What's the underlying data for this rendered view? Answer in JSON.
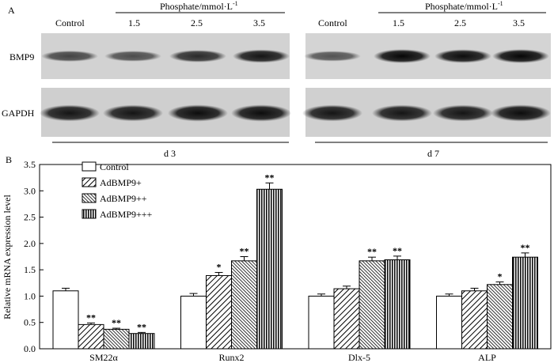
{
  "panel_a": {
    "label": "A",
    "column_labels": [
      "Control",
      "1.5",
      "2.5",
      "3.5"
    ],
    "phosphate_label_main": "Phosphate/mmol·L",
    "phosphate_label_sup": "-1",
    "rows": [
      "BMP9",
      "GAPDH"
    ],
    "groups": [
      {
        "time_label": "d 3",
        "bmp9_intensity": [
          0.5,
          0.45,
          0.7,
          0.85
        ],
        "gapdh_intensity": [
          0.85,
          0.85,
          0.9,
          0.9
        ]
      },
      {
        "time_label": "d 7",
        "bmp9_intensity": [
          0.4,
          0.95,
          0.9,
          0.95
        ],
        "gapdh_intensity": [
          0.85,
          0.85,
          0.85,
          0.9
        ]
      }
    ]
  },
  "panel_b": {
    "label": "B"
  },
  "chart_data": {
    "type": "bar",
    "title": "",
    "xlabel": "",
    "ylabel": "Relative mRNA expression level",
    "ylim": [
      0,
      3.5
    ],
    "yticks": [
      "0.0",
      "0.5",
      "1.0",
      "1.5",
      "2.0",
      "2.5",
      "3.0",
      "3.5"
    ],
    "categories": [
      "SM22α",
      "Runx2",
      "Dlx-5",
      "ALP"
    ],
    "legend_position": "top-left",
    "series": [
      {
        "name": "Control",
        "pattern": "open",
        "values": [
          1.1,
          1.0,
          1.0,
          1.0
        ],
        "errors": [
          0.05,
          0.05,
          0.04,
          0.04
        ],
        "sig": [
          "",
          "",
          "",
          ""
        ]
      },
      {
        "name": "AdBMP9+",
        "pattern": "diagonal",
        "values": [
          0.46,
          1.39,
          1.14,
          1.1
        ],
        "errors": [
          0.03,
          0.06,
          0.05,
          0.05
        ],
        "sig": [
          "**",
          "*",
          "",
          ""
        ]
      },
      {
        "name": "AdBMP9++",
        "pattern": "dense-diagonal",
        "values": [
          0.37,
          1.67,
          1.67,
          1.22
        ],
        "errors": [
          0.02,
          0.08,
          0.07,
          0.05
        ],
        "sig": [
          "**",
          "**",
          "**",
          "*"
        ]
      },
      {
        "name": "AdBMP9+++",
        "pattern": "vertical",
        "values": [
          0.29,
          3.03,
          1.69,
          1.74
        ],
        "errors": [
          0.02,
          0.12,
          0.07,
          0.08
        ],
        "sig": [
          "**",
          "**",
          "**",
          "**"
        ]
      }
    ]
  }
}
